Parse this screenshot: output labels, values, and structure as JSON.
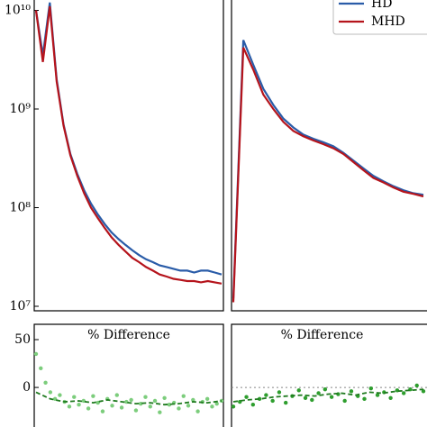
{
  "chart_data": [
    {
      "type": "line",
      "log": true,
      "ylim": [
        10000000,
        13000000000
      ],
      "yticks": [
        {
          "value": 10000000,
          "label": "10⁷"
        },
        {
          "value": 100000000,
          "label": "10⁸"
        },
        {
          "value": 1000000000,
          "label": "10⁹"
        },
        {
          "value": 10000000000,
          "label": "10¹⁰"
        }
      ],
      "series": [
        {
          "name": "HD",
          "color": "#2a5ca8",
          "values": [
            10000000000,
            3500000000,
            12000000000,
            2000000000,
            700000000,
            350000000,
            220000000,
            150000000,
            110000000,
            85000000,
            68000000,
            56000000,
            48000000,
            42000000,
            37000000,
            33000000,
            30000000,
            28000000,
            26000000,
            25000000,
            24000000,
            23000000,
            23000000,
            22000000,
            23000000,
            23000000,
            22000000,
            21000000
          ]
        },
        {
          "name": "MHD",
          "color": "#b5141c",
          "values": [
            10000000000,
            3000000000,
            11000000000,
            1900000000,
            680000000,
            340000000,
            210000000,
            140000000,
            100000000,
            78000000,
            62000000,
            50000000,
            42000000,
            36000000,
            31000000,
            28000000,
            25000000,
            23000000,
            21000000,
            20000000,
            19000000,
            18500000,
            18000000,
            18000000,
            17500000,
            18000000,
            17500000,
            17000000
          ]
        }
      ]
    },
    {
      "type": "line",
      "log": true,
      "ylim": [
        10000000,
        13000000000
      ],
      "legend": "upper right",
      "series": [
        {
          "name": "HD",
          "color": "#2a5ca8",
          "values": [
            12000000,
            5000000000,
            2800000000,
            1600000000,
            1100000000,
            800000000,
            650000000,
            550000000,
            500000000,
            460000000,
            420000000,
            360000000,
            300000000,
            250000000,
            210000000,
            185000000,
            165000000,
            150000000,
            140000000,
            135000000
          ]
        },
        {
          "name": "MHD",
          "color": "#b5141c",
          "values": [
            11000000,
            4200000000,
            2500000000,
            1400000000,
            1000000000,
            740000000,
            600000000,
            530000000,
            480000000,
            440000000,
            400000000,
            350000000,
            290000000,
            240000000,
            200000000,
            180000000,
            160000000,
            145000000,
            138000000,
            130000000
          ]
        }
      ]
    },
    {
      "type": "scatter",
      "title": "% Difference",
      "ylim": [
        -47,
        66
      ],
      "yticks": [
        0,
        50
      ],
      "series": [
        {
          "color": "#7ccd7c",
          "marker": "dots",
          "values": [
            35,
            20,
            5,
            -5,
            -12,
            -8,
            -15,
            -20,
            -10,
            -18,
            -14,
            -22,
            -9,
            -16,
            -25,
            -12,
            -19,
            -8,
            -21,
            -15,
            -13,
            -24,
            -17,
            -10,
            -20,
            -14,
            -26,
            -11,
            -18,
            -16,
            -22,
            -9,
            -19,
            -13,
            -25,
            -15,
            -12,
            -20,
            -17,
            -14
          ]
        },
        {
          "color": "#1f7a1f",
          "linestyle": "dashed",
          "values": [
            -5,
            -12,
            -15,
            -14,
            -16,
            -13,
            -15,
            -17,
            -16,
            -18,
            -17,
            -15,
            -16,
            -14
          ]
        }
      ]
    },
    {
      "type": "scatter",
      "title": "% Difference",
      "ylim": [
        -47,
        66
      ],
      "hline": 0,
      "series": [
        {
          "color": "#2e9e2e",
          "marker": "dots",
          "values": [
            -20,
            -15,
            -10,
            -18,
            -12,
            -8,
            -14,
            -5,
            -16,
            -9,
            -3,
            -11,
            -13,
            -6,
            -2,
            -10,
            -7,
            -14,
            -4,
            -9,
            -12,
            -1,
            -8,
            -5,
            -11,
            -3,
            -6,
            -2,
            2,
            -4
          ]
        },
        {
          "color": "#1f7a1f",
          "linestyle": "dashed",
          "values": [
            -15,
            -13,
            -12,
            -10,
            -9,
            -8,
            -9,
            -7,
            -6,
            -8,
            -5,
            -6,
            -4,
            -3,
            -2
          ]
        }
      ]
    }
  ]
}
